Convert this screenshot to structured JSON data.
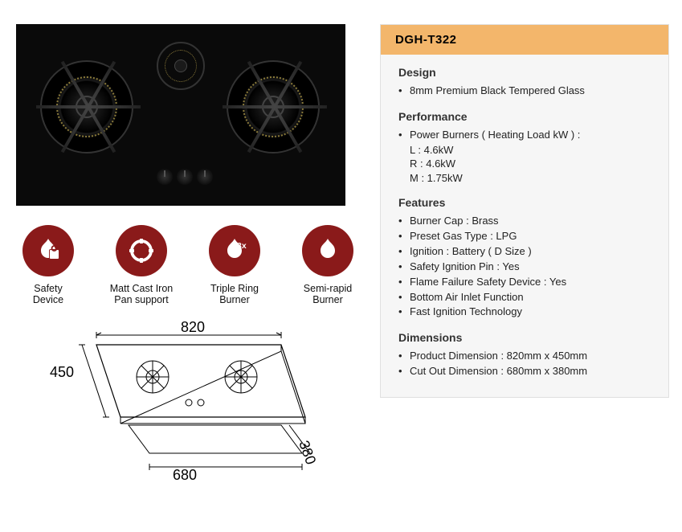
{
  "colors": {
    "accent_header": "#f3b66b",
    "icon_circle": "#8a1a1a",
    "panel_bg": "#f6f6f6",
    "panel_border": "#e0e0e0",
    "product_bg": "#0a0a0a"
  },
  "product": {
    "model": "DGH-T322"
  },
  "features_row": [
    {
      "icon": "safety-device-icon",
      "label_l1": "Safety",
      "label_l2": "Device"
    },
    {
      "icon": "pan-support-icon",
      "label_l1": "Matt Cast Iron",
      "label_l2": "Pan support"
    },
    {
      "icon": "triple-ring-icon",
      "label_l1": "Triple Ring",
      "label_l2": "Burner"
    },
    {
      "icon": "semi-rapid-icon",
      "label_l1": "Semi-rapid",
      "label_l2": "Burner"
    }
  ],
  "dimensions_diagram": {
    "width_label": "820",
    "depth_label": "450",
    "cutout_width_label": "680",
    "cutout_depth_label": "380"
  },
  "spec": {
    "sections": [
      {
        "title": "Design",
        "items": [
          {
            "text": "8mm Premium Black Tempered Glass"
          }
        ]
      },
      {
        "title": "Performance",
        "items": [
          {
            "text": "Power Burners ( Heating Load kW ) :",
            "sublines": [
              "L : 4.6kW",
              "R : 4.6kW",
              "M : 1.75kW"
            ]
          }
        ]
      },
      {
        "title": "Features",
        "items": [
          {
            "text": "Burner Cap : Brass"
          },
          {
            "text": "Preset Gas Type : LPG"
          },
          {
            "text": "Ignition : Battery ( D Size )"
          },
          {
            "text": "Safety Ignition Pin : Yes"
          },
          {
            "text": "Flame Failure Safety Device : Yes"
          },
          {
            "text": "Bottom Air Inlet Function"
          },
          {
            "text": "Fast Ignition Technology"
          }
        ]
      },
      {
        "title": "Dimensions",
        "items": [
          {
            "text": "Product Dimension : 820mm x 450mm"
          },
          {
            "text": "Cut Out Dimension : 680mm x 380mm"
          }
        ]
      }
    ]
  }
}
